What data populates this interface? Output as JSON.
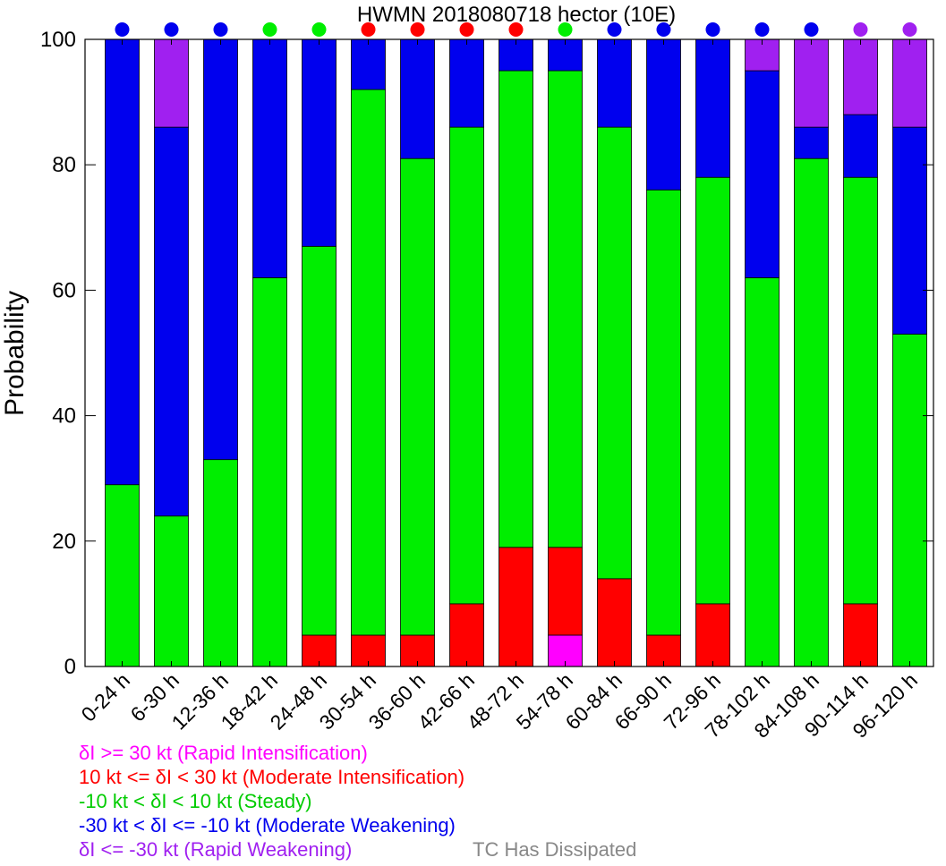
{
  "chart_data": {
    "type": "bar",
    "title": "HWMN 2018080718 hector (10E)",
    "ylabel": "Probability",
    "xlabel": "",
    "ylim": [
      0,
      100
    ],
    "yticks": [
      0,
      20,
      40,
      60,
      80,
      100
    ],
    "categories": [
      "0-24 h",
      "6-30 h",
      "12-36 h",
      "18-42 h",
      "24-48 h",
      "30-54 h",
      "36-60 h",
      "42-66 h",
      "48-72 h",
      "54-78 h",
      "60-84 h",
      "66-90 h",
      "72-96 h",
      "78-102 h",
      "84-108 h",
      "90-114 h",
      "96-120 h"
    ],
    "series": [
      {
        "name": "δI >= 30 kt (Rapid Intensification)",
        "color": "#ff00ff",
        "values": [
          0,
          0,
          0,
          0,
          0,
          0,
          0,
          0,
          0,
          5,
          0,
          0,
          0,
          0,
          0,
          0,
          0
        ]
      },
      {
        "name": "10 kt <= δI < 30 kt (Moderate Intensification)",
        "color": "#ff0000",
        "values": [
          0,
          0,
          0,
          0,
          5,
          5,
          5,
          10,
          19,
          14,
          14,
          5,
          10,
          0,
          0,
          10,
          0
        ]
      },
      {
        "name": "-10 kt < δI < 10 kt (Steady)",
        "color": "#00ee00",
        "values": [
          29,
          24,
          33,
          62,
          62,
          87,
          76,
          76,
          76,
          76,
          72,
          71,
          68,
          62,
          81,
          68,
          53
        ]
      },
      {
        "name": "-30 kt < δI <= -10 kt (Moderate Weakening)",
        "color": "#0000ee",
        "values": [
          71,
          62,
          67,
          38,
          33,
          8,
          19,
          14,
          5,
          5,
          14,
          24,
          22,
          33,
          5,
          10,
          33
        ]
      },
      {
        "name": "δI <= -30 kt (Rapid Weakening)",
        "color": "#a020f0",
        "values": [
          0,
          14,
          0,
          0,
          0,
          0,
          0,
          0,
          0,
          0,
          0,
          0,
          0,
          5,
          14,
          12,
          14
        ]
      }
    ],
    "category_markers": [
      "#0000ee",
      "#0000ee",
      "#0000ee",
      "#00ee00",
      "#00ee00",
      "#ff0000",
      "#ff0000",
      "#ff0000",
      "#ff0000",
      "#00ee00",
      "#0000ee",
      "#0000ee",
      "#0000ee",
      "#0000ee",
      "#0000ee",
      "#a020f0",
      "#a020f0"
    ]
  },
  "legend": {
    "items": [
      {
        "label": "δI >= 30 kt (Rapid Intensification)",
        "color": "#ff00ff"
      },
      {
        "label": "10 kt <= δI < 30 kt (Moderate Intensification)",
        "color": "#ff0000"
      },
      {
        "label": "-10 kt < δI < 10 kt (Steady)",
        "color": "#00cc00"
      },
      {
        "label": "-30 kt < δI <= -10 kt (Moderate Weakening)",
        "color": "#0000ee"
      },
      {
        "label": "δI <= -30 kt (Rapid Weakening)",
        "color": "#a020f0"
      }
    ],
    "dissipated_label": "TC Has Dissipated",
    "dissipated_color": "#888888"
  }
}
